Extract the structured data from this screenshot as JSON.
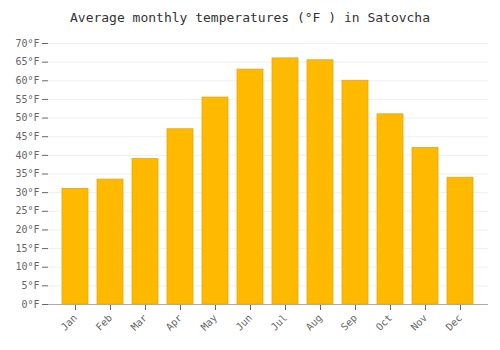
{
  "chart_data": {
    "type": "bar",
    "title": "Average monthly temperatures (°F ) in Satovcha",
    "categories": [
      "Jan",
      "Feb",
      "Mar",
      "Apr",
      "May",
      "Jun",
      "Jul",
      "Aug",
      "Sep",
      "Oct",
      "Nov",
      "Dec"
    ],
    "values": [
      31,
      33.5,
      39,
      47,
      55.5,
      63,
      66,
      65.5,
      60,
      51,
      42,
      34
    ],
    "color": "#FFBA00",
    "ylim": [
      0,
      70
    ],
    "yticks": [
      {
        "value": 0,
        "label": "0°F"
      },
      {
        "value": 5,
        "label": "5°F"
      },
      {
        "value": 10,
        "label": "10°F"
      },
      {
        "value": 15,
        "label": "15°F"
      },
      {
        "value": 20,
        "label": "20°F"
      },
      {
        "value": 25,
        "label": "25°F"
      },
      {
        "value": 30,
        "label": "30°F"
      },
      {
        "value": 35,
        "label": "35°F"
      },
      {
        "value": 40,
        "label": "40°F"
      },
      {
        "value": 45,
        "label": "45°F"
      },
      {
        "value": 50,
        "label": "50°F"
      },
      {
        "value": 55,
        "label": "55°F"
      },
      {
        "value": 60,
        "label": "60°F"
      },
      {
        "value": 65,
        "label": "65°F"
      },
      {
        "value": 70,
        "label": "70°F"
      }
    ],
    "grid": true
  }
}
